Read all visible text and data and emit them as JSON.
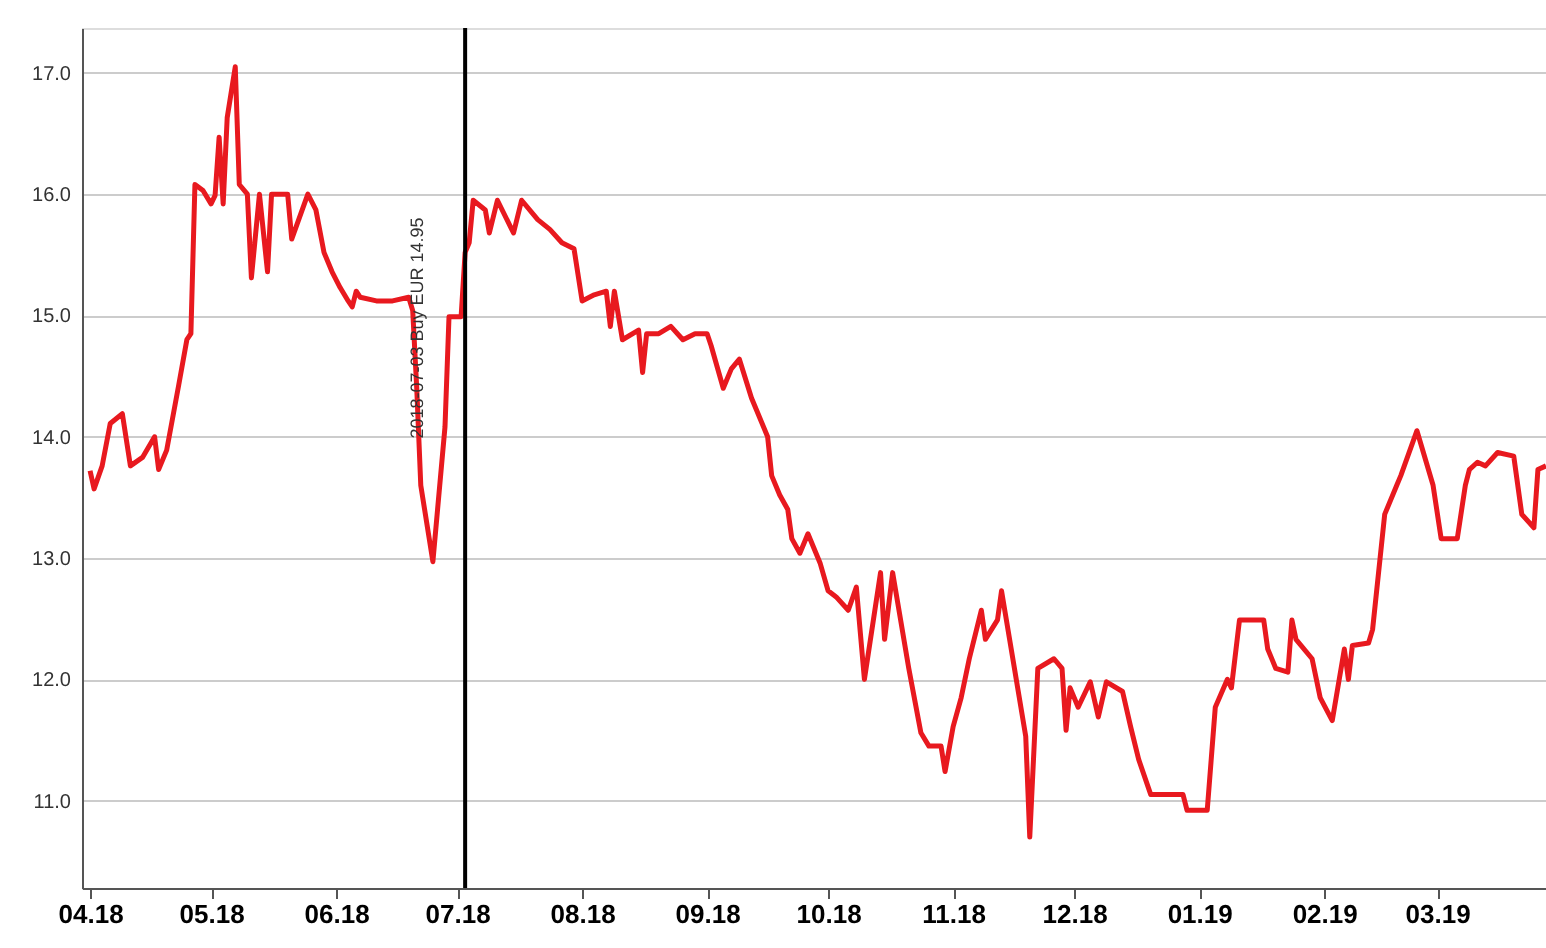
{
  "chart_data": {
    "type": "line",
    "xlim": [
      "2018-03-30",
      "2019-03-28"
    ],
    "ylim": [
      10.28,
      17.37
    ],
    "xticks": [
      {
        "value": "2018-04-01",
        "label": "04.18"
      },
      {
        "value": "2018-05-01",
        "label": "05.18"
      },
      {
        "value": "2018-06-01",
        "label": "06.18"
      },
      {
        "value": "2018-07-01",
        "label": "07.18"
      },
      {
        "value": "2018-08-01",
        "label": "08.18"
      },
      {
        "value": "2018-09-01",
        "label": "09.18"
      },
      {
        "value": "2018-10-01",
        "label": "10.18"
      },
      {
        "value": "2018-11-01",
        "label": "11.18"
      },
      {
        "value": "2018-12-01",
        "label": "12.18"
      },
      {
        "value": "2019-01-01",
        "label": "01.19"
      },
      {
        "value": "2019-02-01",
        "label": "02.19"
      },
      {
        "value": "2019-03-01",
        "label": "03.19"
      }
    ],
    "yticks": [
      {
        "value": 11,
        "label": "11.0"
      },
      {
        "value": 12,
        "label": "12.0"
      },
      {
        "value": 13,
        "label": "13.0"
      },
      {
        "value": 14,
        "label": "14.0"
      },
      {
        "value": 15,
        "label": "15.0"
      },
      {
        "value": 16,
        "label": "16.0"
      },
      {
        "value": 17,
        "label": "17.0"
      }
    ],
    "grid": "y",
    "marker": "none",
    "line_style": "solid",
    "ref_lines": [
      {
        "axis": "x",
        "value": "2018-07-03",
        "label": "2018-07-03 Buy EUR 14.95",
        "color": "#000000"
      }
    ],
    "x": [
      "2018-04-01",
      "2018-04-02",
      "2018-04-04",
      "2018-04-06",
      "2018-04-09",
      "2018-04-11",
      "2018-04-14",
      "2018-04-17",
      "2018-04-18",
      "2018-04-20",
      "2018-04-23",
      "2018-04-25",
      "2018-04-26",
      "2018-04-27",
      "2018-04-29",
      "2018-05-01",
      "2018-05-02",
      "2018-05-03",
      "2018-05-04",
      "2018-05-05",
      "2018-05-07",
      "2018-05-08",
      "2018-05-10",
      "2018-05-11",
      "2018-05-13",
      "2018-05-15",
      "2018-05-16",
      "2018-05-20",
      "2018-05-21",
      "2018-05-25",
      "2018-05-27",
      "2018-05-29",
      "2018-05-31",
      "2018-06-02",
      "2018-06-04",
      "2018-06-05",
      "2018-06-06",
      "2018-06-07",
      "2018-06-11",
      "2018-06-15",
      "2018-06-19",
      "2018-06-20",
      "2018-06-21",
      "2018-06-22",
      "2018-06-25",
      "2018-06-28",
      "2018-06-29",
      "2018-07-02",
      "2018-07-03",
      "2018-07-04",
      "2018-07-05",
      "2018-07-08",
      "2018-07-09",
      "2018-07-11",
      "2018-07-15",
      "2018-07-17",
      "2018-07-21",
      "2018-07-24",
      "2018-07-27",
      "2018-07-30",
      "2018-08-01",
      "2018-08-04",
      "2018-08-07",
      "2018-08-08",
      "2018-08-09",
      "2018-08-11",
      "2018-08-15",
      "2018-08-16",
      "2018-08-17",
      "2018-08-20",
      "2018-08-23",
      "2018-08-26",
      "2018-08-29",
      "2018-09-01",
      "2018-09-02",
      "2018-09-05",
      "2018-09-07",
      "2018-09-09",
      "2018-09-12",
      "2018-09-16",
      "2018-09-17",
      "2018-09-19",
      "2018-09-21",
      "2018-09-22",
      "2018-09-24",
      "2018-09-26",
      "2018-09-29",
      "2018-10-01",
      "2018-10-03",
      "2018-10-06",
      "2018-10-08",
      "2018-10-10",
      "2018-10-14",
      "2018-10-15",
      "2018-10-17",
      "2018-10-21",
      "2018-10-24",
      "2018-10-26",
      "2018-10-29",
      "2018-10-30",
      "2018-11-01",
      "2018-11-03",
      "2018-11-05",
      "2018-11-08",
      "2018-11-09",
      "2018-11-12",
      "2018-11-13",
      "2018-11-15",
      "2018-11-17",
      "2018-11-19",
      "2018-11-20",
      "2018-11-22",
      "2018-11-26",
      "2018-11-28",
      "2018-11-29",
      "2018-11-30",
      "2018-12-02",
      "2018-12-05",
      "2018-12-07",
      "2018-12-09",
      "2018-12-13",
      "2018-12-15",
      "2018-12-17",
      "2018-12-20",
      "2018-12-28",
      "2018-12-29",
      "2019-01-03",
      "2019-01-05",
      "2019-01-08",
      "2019-01-09",
      "2019-01-11",
      "2019-01-17",
      "2019-01-18",
      "2019-01-20",
      "2019-01-23",
      "2019-01-24",
      "2019-01-25",
      "2019-01-29",
      "2019-01-31",
      "2019-02-03",
      "2019-02-06",
      "2019-02-07",
      "2019-02-08",
      "2019-02-12",
      "2019-02-13",
      "2019-02-16",
      "2019-02-19",
      "2019-02-20",
      "2019-02-24",
      "2019-02-28",
      "2019-03-02",
      "2019-03-06",
      "2019-03-08",
      "2019-03-09",
      "2019-03-11",
      "2019-03-13",
      "2019-03-16",
      "2019-03-20",
      "2019-03-22",
      "2019-03-25",
      "2019-03-26",
      "2019-03-28"
    ],
    "series": [
      {
        "color": "#e8191f",
        "values": [
          13.72,
          13.57,
          13.76,
          14.11,
          14.19,
          13.76,
          13.83,
          14.0,
          13.73,
          13.89,
          14.43,
          14.8,
          14.85,
          16.08,
          16.03,
          15.92,
          15.99,
          16.47,
          15.92,
          16.63,
          17.05,
          16.08,
          16.0,
          15.31,
          16.0,
          15.36,
          16.0,
          16.0,
          15.63,
          16.0,
          15.87,
          15.52,
          15.36,
          15.23,
          15.12,
          15.07,
          15.2,
          15.15,
          15.12,
          15.12,
          15.15,
          15.04,
          14.4,
          13.6,
          12.97,
          14.08,
          14.99,
          14.99,
          15.52,
          15.6,
          15.95,
          15.87,
          15.68,
          15.95,
          15.68,
          15.95,
          15.79,
          15.71,
          15.6,
          15.55,
          15.12,
          15.17,
          15.2,
          14.91,
          15.2,
          14.8,
          14.88,
          14.53,
          14.85,
          14.85,
          14.91,
          14.8,
          14.85,
          14.85,
          14.75,
          14.4,
          14.56,
          14.64,
          14.32,
          14.0,
          13.68,
          13.52,
          13.4,
          13.16,
          13.04,
          13.2,
          12.96,
          12.73,
          12.68,
          12.57,
          12.76,
          12.0,
          12.88,
          12.33,
          12.88,
          12.09,
          11.56,
          11.45,
          11.45,
          11.24,
          11.61,
          11.85,
          12.17,
          12.57,
          12.33,
          12.49,
          12.73,
          12.33,
          11.93,
          11.53,
          10.7,
          12.09,
          12.17,
          12.09,
          11.58,
          11.93,
          11.77,
          11.98,
          11.69,
          11.98,
          11.9,
          11.61,
          11.34,
          11.05,
          11.05,
          10.92,
          10.92,
          11.77,
          12.0,
          11.93,
          12.49,
          12.49,
          12.25,
          12.09,
          12.06,
          12.49,
          12.33,
          12.17,
          11.85,
          11.66,
          12.25,
          12.0,
          12.28,
          12.3,
          12.41,
          13.36,
          13.6,
          13.68,
          14.05,
          13.6,
          13.16,
          13.16,
          13.6,
          13.73,
          13.79,
          13.76,
          13.87,
          13.84,
          13.36,
          13.25,
          13.73,
          13.76
        ]
      }
    ]
  }
}
